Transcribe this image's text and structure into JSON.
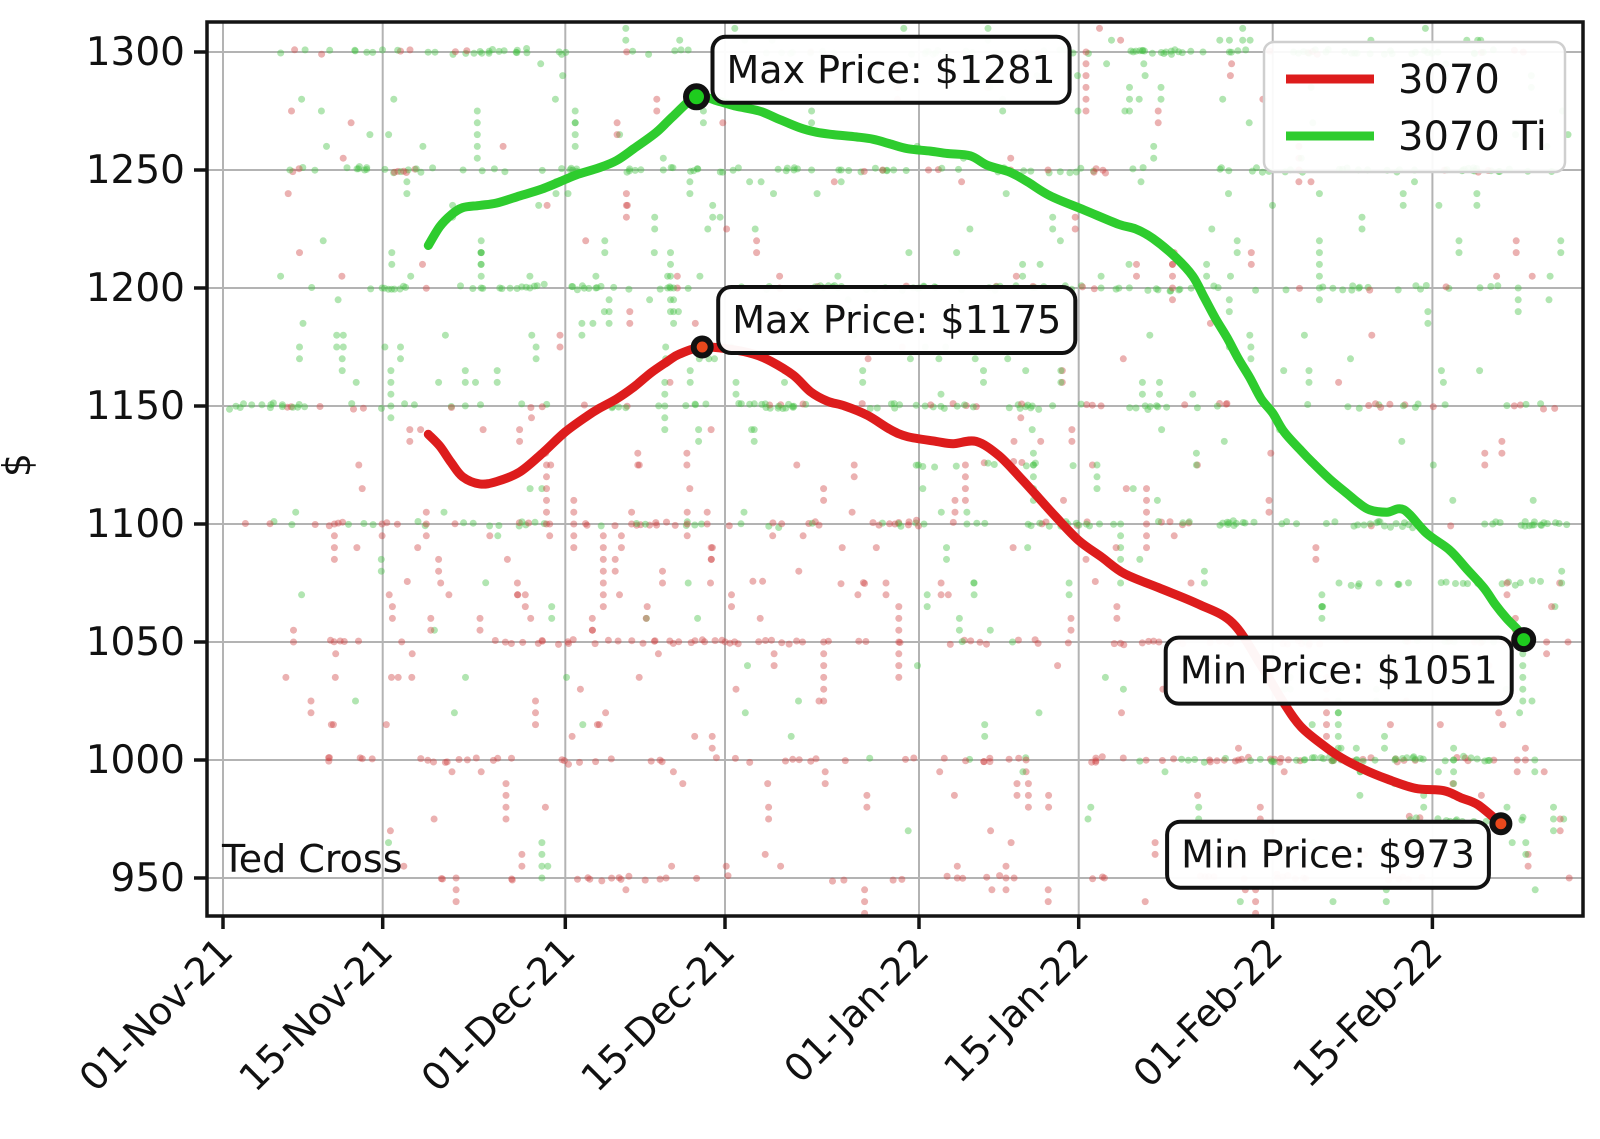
{
  "figure": {
    "watermark": "Ted Cross",
    "background": "#ffffff",
    "grid_color": "#b3b3b3",
    "spine_color": "#141414"
  },
  "legend": {
    "items": [
      {
        "label": "3070",
        "color": "#dd1c1c"
      },
      {
        "label": "3070 Ti",
        "color": "#2ecc2e"
      }
    ]
  },
  "annotations": [
    {
      "label": "Max Price: $1281",
      "day": 41.5,
      "price": 1281,
      "marker_fill": "#1ecc1e",
      "marker_edge": "#111111",
      "marker_r": 10.5,
      "anchor": "up-right"
    },
    {
      "label": "Max Price: $1175",
      "day": 42,
      "price": 1175,
      "marker_fill": "#e8481c",
      "marker_edge": "#111111",
      "marker_r": 8.5,
      "anchor": "up-right"
    },
    {
      "label": "Min Price: $1051",
      "day": 114,
      "price": 1051,
      "marker_fill": "#1ecc1e",
      "marker_edge": "#111111",
      "marker_r": 9.5,
      "anchor": "down-left"
    },
    {
      "label": "Min Price: $973",
      "day": 112,
      "price": 973,
      "marker_fill": "#e8481c",
      "marker_edge": "#111111",
      "marker_r": 8.5,
      "anchor": "down-left"
    }
  ],
  "chart_data": {
    "type": "line+scatter",
    "title": "",
    "xlabel": "",
    "ylabel": "$",
    "x_unit": "days since 01-Nov-21",
    "xlim_days": [
      -1.4,
      119.2
    ],
    "ylim": [
      933.9,
      1312.7
    ],
    "grid": true,
    "legend_position": "upper right",
    "x_ticks": [
      {
        "label": "01-Nov-21",
        "day": 0
      },
      {
        "label": "15-Nov-21",
        "day": 14
      },
      {
        "label": "01-Dec-21",
        "day": 30
      },
      {
        "label": "15-Dec-21",
        "day": 44
      },
      {
        "label": "01-Jan-22",
        "day": 61
      },
      {
        "label": "15-Jan-22",
        "day": 75
      },
      {
        "label": "01-Feb-22",
        "day": 92
      },
      {
        "label": "15-Feb-22",
        "day": 106
      }
    ],
    "y_ticks": [
      950,
      1000,
      1050,
      1100,
      1150,
      1200,
      1250,
      1300
    ],
    "series": [
      {
        "name": "3070",
        "color": "#dd1c1c",
        "line_width": 9,
        "max_price": 1175,
        "min_price": 973,
        "points": [
          [
            18,
            1138
          ],
          [
            19,
            1133
          ],
          [
            20,
            1126
          ],
          [
            21,
            1120
          ],
          [
            22.5,
            1117
          ],
          [
            24,
            1118
          ],
          [
            26,
            1122
          ],
          [
            28,
            1130
          ],
          [
            30,
            1139
          ],
          [
            32,
            1146
          ],
          [
            33,
            1149
          ],
          [
            34.5,
            1153
          ],
          [
            36,
            1158
          ],
          [
            37.5,
            1164
          ],
          [
            39,
            1169
          ],
          [
            40,
            1172
          ],
          [
            42,
            1175
          ],
          [
            44.5,
            1174
          ],
          [
            46.5,
            1172
          ],
          [
            48,
            1169
          ],
          [
            50,
            1163
          ],
          [
            51.5,
            1156
          ],
          [
            53,
            1152
          ],
          [
            54.5,
            1150
          ],
          [
            56.5,
            1146
          ],
          [
            58.5,
            1140
          ],
          [
            60,
            1137
          ],
          [
            62.5,
            1135
          ],
          [
            64,
            1134
          ],
          [
            66,
            1135
          ],
          [
            68,
            1129
          ],
          [
            70,
            1119
          ],
          [
            71.5,
            1111
          ],
          [
            73,
            1103
          ],
          [
            75,
            1093
          ],
          [
            77,
            1086
          ],
          [
            79,
            1079
          ],
          [
            82,
            1073
          ],
          [
            85.5,
            1066
          ],
          [
            88.5,
            1058
          ],
          [
            91,
            1040
          ],
          [
            93,
            1024
          ],
          [
            94.5,
            1014
          ],
          [
            96.5,
            1006
          ],
          [
            98,
            1001
          ],
          [
            100,
            996
          ],
          [
            102,
            992
          ],
          [
            104.5,
            988
          ],
          [
            107,
            987
          ],
          [
            108.5,
            984
          ],
          [
            110,
            981
          ],
          [
            112,
            973
          ]
        ]
      },
      {
        "name": "3070 Ti",
        "color": "#2ecc2e",
        "line_width": 9,
        "max_price": 1281,
        "min_price": 1051,
        "points": [
          [
            18,
            1218
          ],
          [
            19,
            1226
          ],
          [
            20,
            1231
          ],
          [
            21,
            1234
          ],
          [
            22.5,
            1235
          ],
          [
            24,
            1236
          ],
          [
            26,
            1239
          ],
          [
            28,
            1242
          ],
          [
            30,
            1246
          ],
          [
            31,
            1248
          ],
          [
            33,
            1251
          ],
          [
            34.5,
            1254
          ],
          [
            36,
            1259
          ],
          [
            38,
            1266
          ],
          [
            39.5,
            1273
          ],
          [
            41.5,
            1281
          ],
          [
            43.5,
            1279
          ],
          [
            45,
            1277
          ],
          [
            47,
            1275
          ],
          [
            48.5,
            1272
          ],
          [
            50.5,
            1268
          ],
          [
            52,
            1266
          ],
          [
            53.5,
            1265
          ],
          [
            55.5,
            1264
          ],
          [
            57,
            1263
          ],
          [
            58.5,
            1261
          ],
          [
            60,
            1259
          ],
          [
            62,
            1258
          ],
          [
            63.5,
            1257
          ],
          [
            65.5,
            1256
          ],
          [
            67,
            1252
          ],
          [
            69,
            1249
          ],
          [
            70.5,
            1245
          ],
          [
            72.5,
            1239
          ],
          [
            75.5,
            1233
          ],
          [
            78.5,
            1227
          ],
          [
            80,
            1225
          ],
          [
            81.5,
            1221
          ],
          [
            83.5,
            1213
          ],
          [
            85,
            1205
          ],
          [
            86,
            1196
          ],
          [
            87,
            1187
          ],
          [
            88,
            1179
          ],
          [
            89,
            1170
          ],
          [
            90,
            1162
          ],
          [
            91,
            1153
          ],
          [
            92,
            1147
          ],
          [
            93,
            1139
          ],
          [
            94.5,
            1131
          ],
          [
            95.5,
            1126
          ],
          [
            97,
            1119
          ],
          [
            98.5,
            1113
          ],
          [
            99.5,
            1109
          ],
          [
            100.5,
            1106
          ],
          [
            102,
            1105
          ],
          [
            103.5,
            1106
          ],
          [
            105.5,
            1096
          ],
          [
            107.5,
            1089
          ],
          [
            109,
            1081
          ],
          [
            110.5,
            1073
          ],
          [
            111.5,
            1066
          ],
          [
            112.5,
            1060
          ],
          [
            113.5,
            1055
          ],
          [
            114,
            1051
          ]
        ]
      }
    ],
    "scatter": {
      "description": "daily listing prices; dense horizontal bands at round prices",
      "seed": 7,
      "radius": 3.5,
      "alpha": 0.42,
      "green_color": "#46c046",
      "red_color": "#cf4646",
      "pair_prob": 0.3,
      "column_prob": 0.07,
      "bands": [
        {
          "price": 1300,
          "days": [
            5,
            114
          ],
          "n": 95,
          "green_frac": 0.9
        },
        {
          "price": 1250,
          "days": [
            6,
            117
          ],
          "n": 95,
          "green_frac": 0.88
        },
        {
          "price": 1200,
          "days": [
            5,
            112
          ],
          "n": 85,
          "green_frac": 0.85
        },
        {
          "price": 1150,
          "days": [
            1,
            117
          ],
          "n": 100,
          "green_frac": 0.72
        },
        {
          "price": 1125,
          "days": [
            60,
            75
          ],
          "n": 10,
          "green_frac": 0.95
        },
        {
          "price": 1100,
          "days": [
            1,
            72
          ],
          "n": 55,
          "green_frac": 0.45
        },
        {
          "price": 1100,
          "days": [
            72,
            118
          ],
          "n": 50,
          "green_frac": 0.85
        },
        {
          "price": 1075,
          "days": [
            96,
            115
          ],
          "n": 14,
          "green_frac": 0.9
        },
        {
          "price": 1075,
          "days": [
            14,
            90
          ],
          "n": 8,
          "green_frac": 0.2
        },
        {
          "price": 1050,
          "days": [
            7,
            106
          ],
          "n": 65,
          "green_frac": 0.05
        },
        {
          "price": 1050,
          "days": [
            104,
            114
          ],
          "n": 8,
          "green_frac": 0.8
        },
        {
          "price": 1000,
          "days": [
            9,
            112
          ],
          "n": 70,
          "green_frac": 0.06
        },
        {
          "price": 1000,
          "days": [
            84,
            114
          ],
          "n": 26,
          "green_frac": 0.92
        },
        {
          "price": 975,
          "days": [
            104,
            114
          ],
          "n": 13,
          "green_frac": 0.85
        },
        {
          "price": 950,
          "days": [
            18,
            109
          ],
          "n": 32,
          "green_frac": 0.05
        }
      ],
      "regions": [
        {
          "days": [
            4,
            60
          ],
          "prices": [
            1158,
            1298
          ],
          "n": 120,
          "green_frac": 0.72
        },
        {
          "days": [
            60,
            118
          ],
          "prices": [
            1155,
            1298
          ],
          "n": 110,
          "green_frac": 0.75
        },
        {
          "days": [
            4,
            60
          ],
          "prices": [
            1008,
            1145
          ],
          "n": 120,
          "green_frac": 0.25
        },
        {
          "days": [
            60,
            118
          ],
          "prices": [
            1008,
            1145
          ],
          "n": 95,
          "green_frac": 0.5
        },
        {
          "days": [
            12,
            118
          ],
          "prices": [
            938,
            998
          ],
          "n": 70,
          "green_frac": 0.18
        },
        {
          "days": [
            95,
            118
          ],
          "prices": [
            955,
            1010
          ],
          "n": 25,
          "green_frac": 0.8
        },
        {
          "days": [
            5,
            113
          ],
          "prices": [
            1302,
            1311
          ],
          "n": 22,
          "green_frac": 0.85
        }
      ]
    }
  }
}
